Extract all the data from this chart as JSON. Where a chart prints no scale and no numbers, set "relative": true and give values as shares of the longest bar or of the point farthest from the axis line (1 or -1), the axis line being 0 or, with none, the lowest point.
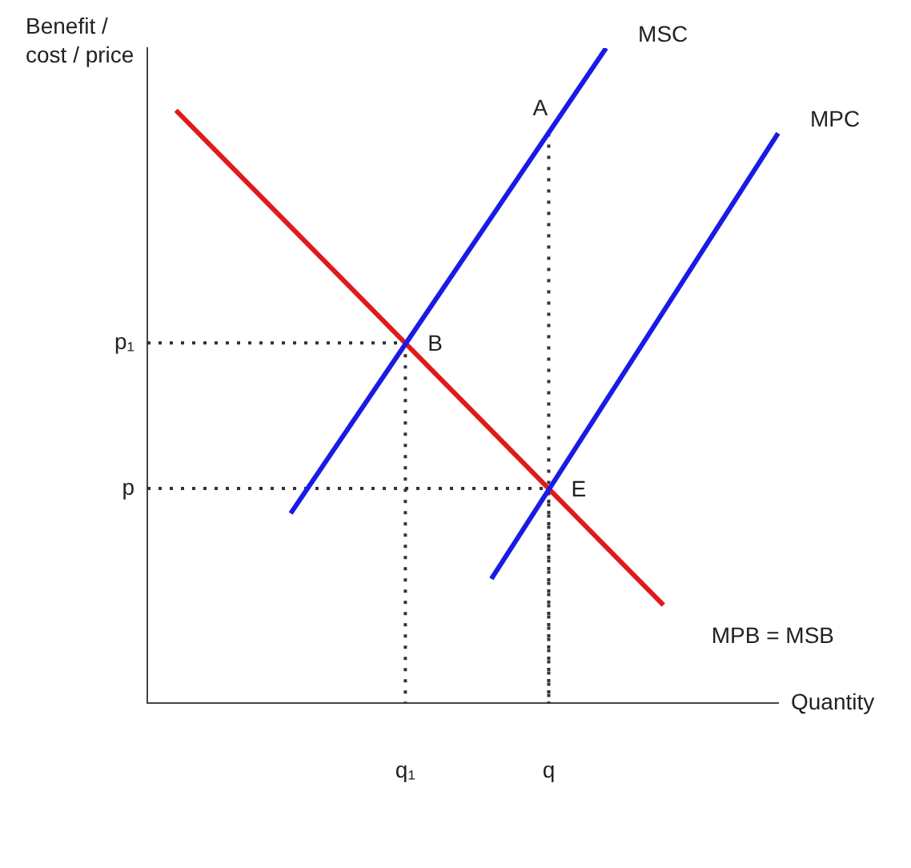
{
  "chart_data": {
    "type": "line",
    "relative": true,
    "xlabel": "Quantity",
    "ylabel": "Benefit / cost / price",
    "categories": [
      null,
      null,
      null,
      null,
      null,
      null,
      null,
      null,
      null,
      "q₁",
      null,
      null,
      null,
      null,
      "q",
      null,
      null,
      null,
      null,
      null,
      null,
      null,
      null
    ],
    "series": [
      {
        "name": "MSC",
        "color": "#1a1ae6",
        "values": [
          null,
          null,
          null,
          null,
          null,
          0.29,
          null,
          null,
          null,
          null,
          null,
          null,
          null,
          null,
          null,
          null,
          1.0,
          null,
          null,
          null,
          null,
          null,
          null
        ]
      },
      {
        "name": "MPC",
        "color": "#1a1ae6",
        "values": [
          null,
          null,
          null,
          null,
          null,
          null,
          null,
          null,
          null,
          null,
          null,
          null,
          0.19,
          null,
          null,
          null,
          null,
          null,
          null,
          null,
          null,
          null,
          0.87
        ]
      },
      {
        "name": "MPB = MSB",
        "color": "#e01a1a",
        "values": [
          null,
          0.905,
          null,
          null,
          null,
          null,
          null,
          null,
          null,
          null,
          null,
          null,
          null,
          null,
          null,
          null,
          null,
          null,
          0.15,
          null,
          null,
          null,
          null
        ]
      }
    ],
    "ref_lines": [
      {
        "axis": "y",
        "value": 0.55,
        "label": "p₁",
        "color": "#333333",
        "line_style": "dotted"
      },
      {
        "axis": "y",
        "value": 0.328,
        "label": "p",
        "color": "#333333",
        "line_style": "dotted"
      }
    ],
    "annotations": [
      {
        "text": "A",
        "x": "q",
        "y": 0.87
      },
      {
        "text": "B",
        "x": "q₁",
        "y": 0.55
      },
      {
        "text": "E",
        "x": "q",
        "y": 0.328
      }
    ]
  }
}
